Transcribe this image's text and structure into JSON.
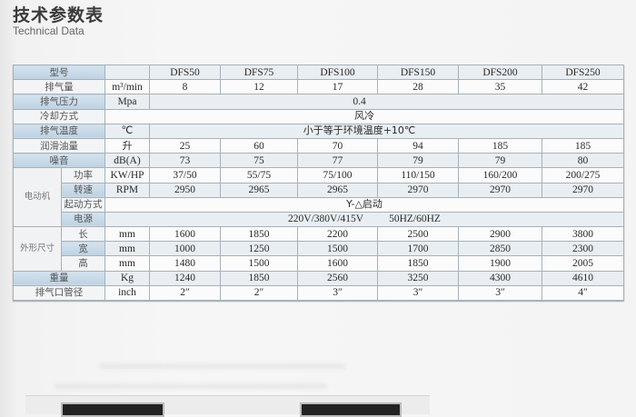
{
  "header": {
    "title": "技术参数表",
    "subtitle": "Technical Data"
  },
  "table": {
    "models": [
      "DFS50",
      "DFS75",
      "DFS100",
      "DFS150",
      "DFS200",
      "DFS250"
    ],
    "model_label": "型号",
    "flow": {
      "label": "排气量",
      "unit": "m³/min",
      "values": [
        "8",
        "12",
        "17",
        "28",
        "35",
        "42"
      ]
    },
    "pressure": {
      "label": "排气压力",
      "unit": "Mpa",
      "value": "0.4"
    },
    "cooling": {
      "label": "冷却方式",
      "value": "风冷"
    },
    "temperature": {
      "label": "排气温度",
      "unit": "℃",
      "value": "小于等于环境温度+10℃"
    },
    "oil": {
      "label": "润滑油量",
      "unit": "升",
      "values": [
        "25",
        "60",
        "70",
        "94",
        "185",
        "185"
      ]
    },
    "noise": {
      "label": "噪音",
      "unit": "dB(A)",
      "values": [
        "73",
        "75",
        "77",
        "79",
        "79",
        "80"
      ]
    },
    "motor": {
      "label": "电动机",
      "power": {
        "label": "功率",
        "unit": "KW/HP",
        "values": [
          "37/50",
          "55/75",
          "75/100",
          "110/150",
          "160/200",
          "200/275"
        ]
      },
      "speed": {
        "label": "转速",
        "unit": "RPM",
        "values": [
          "2950",
          "2965",
          "2965",
          "2970",
          "2970",
          "2970"
        ]
      },
      "start": {
        "label": "起动方式",
        "value": "Y-△启动"
      },
      "supply": {
        "label": "电源",
        "voltage": "220V/380V/415V",
        "frequency": "50HZ/60HZ"
      }
    },
    "dimensions": {
      "label": "外形尺寸",
      "length": {
        "label": "长",
        "unit": "mm",
        "values": [
          "1600",
          "1850",
          "2200",
          "2500",
          "2900",
          "3800"
        ]
      },
      "width": {
        "label": "宽",
        "unit": "mm",
        "values": [
          "1000",
          "1250",
          "1500",
          "1700",
          "2850",
          "2300"
        ]
      },
      "height": {
        "label": "高",
        "unit": "mm",
        "values": [
          "1480",
          "1500",
          "1600",
          "1850",
          "1900",
          "2005"
        ]
      }
    },
    "weight": {
      "label": "重量",
      "unit": "Kg",
      "values": [
        "1240",
        "1850",
        "2560",
        "3250",
        "4300",
        "4610"
      ]
    },
    "outlet": {
      "label": "排气口管径",
      "unit": "inch",
      "values": [
        "2″",
        "2″",
        "3″",
        "3″",
        "3″",
        "4″"
      ]
    }
  }
}
